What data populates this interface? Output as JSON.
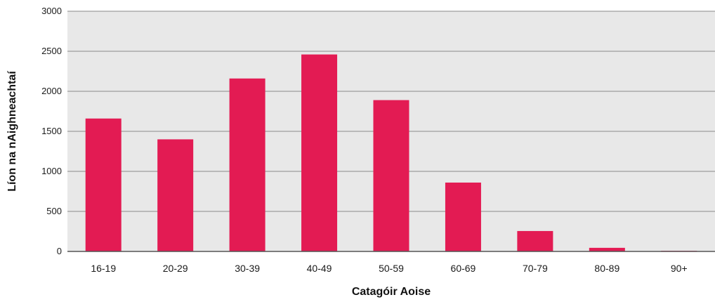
{
  "chart_data": {
    "type": "bar",
    "categories": [
      "16-19",
      "20-29",
      "30-39",
      "40-49",
      "50-59",
      "60-69",
      "70-79",
      "80-89",
      "90+"
    ],
    "values": [
      1660,
      1400,
      2160,
      2460,
      1890,
      860,
      255,
      45,
      8
    ],
    "title": "",
    "xlabel": "Catagóir Aoise",
    "ylabel": "Líon na nAigh­neachtaí",
    "ylim": [
      0,
      3000
    ],
    "yticks": [
      0,
      500,
      1000,
      1500,
      2000,
      2500,
      3000
    ],
    "grid": true,
    "legend": "none",
    "colors": {
      "bar": "#e31b53",
      "plot_background": "#e8e8e8",
      "gridline": "#8a8a8a",
      "axis": "#555555"
    }
  }
}
